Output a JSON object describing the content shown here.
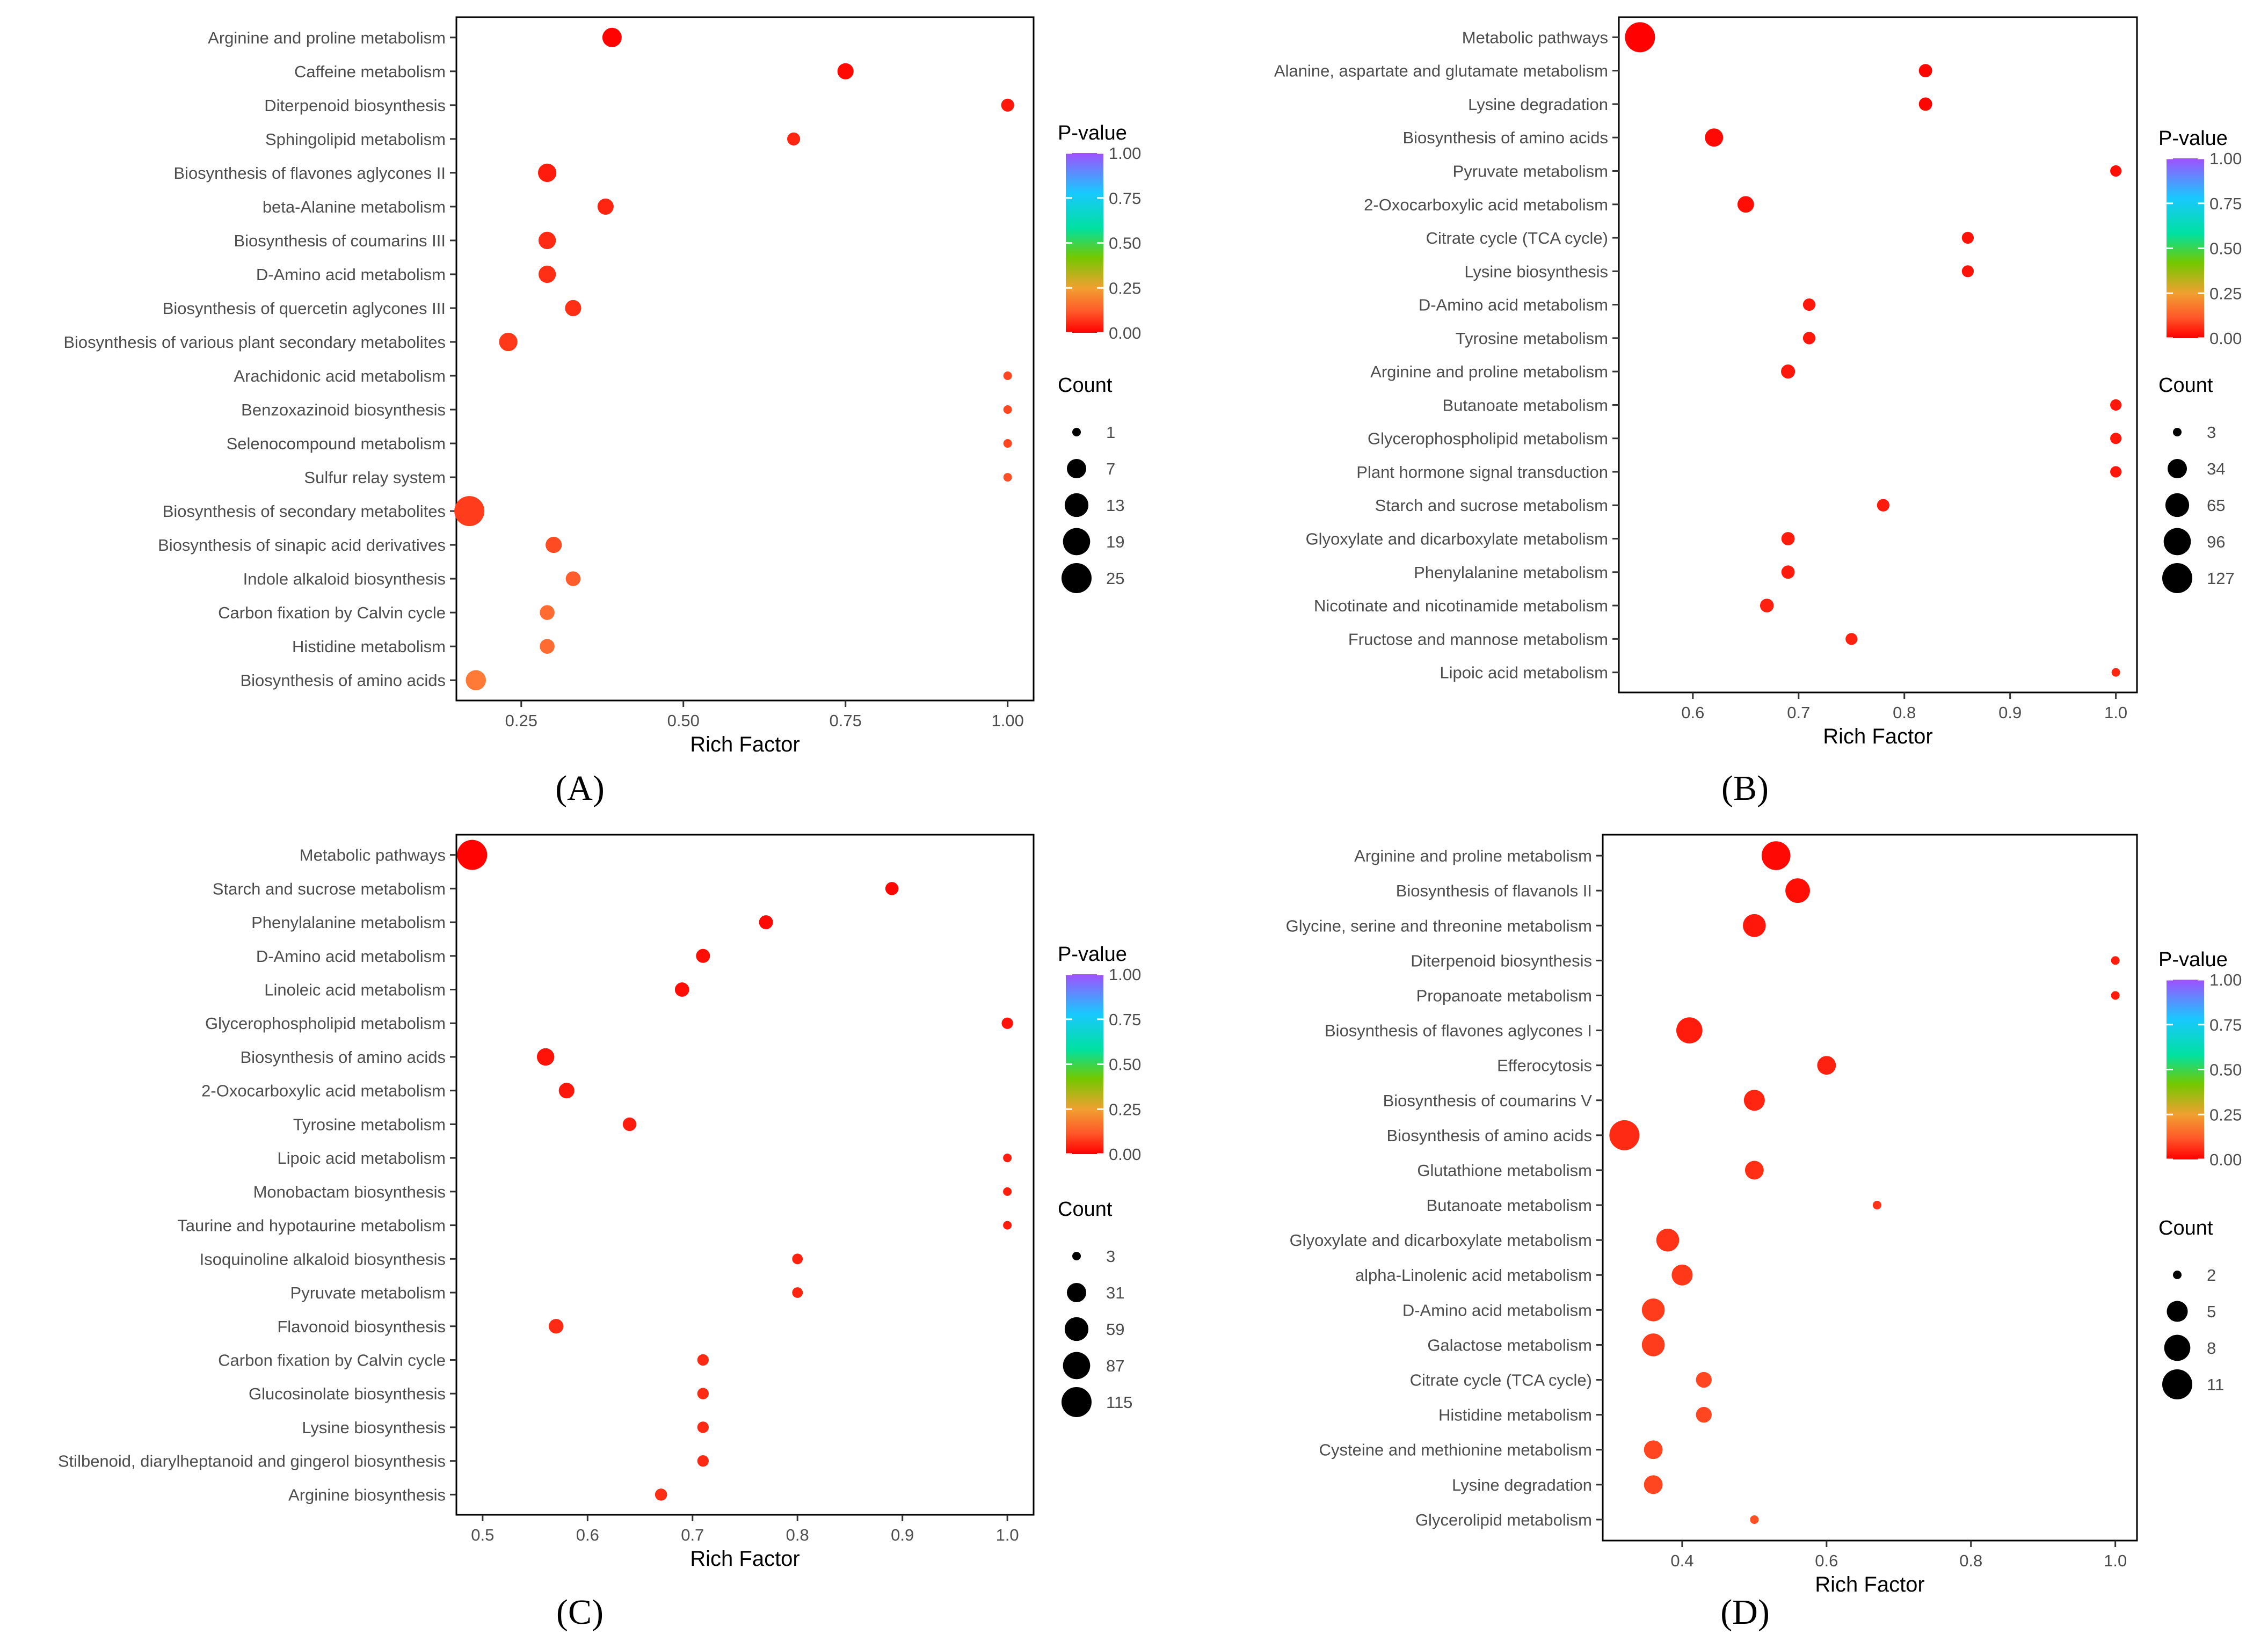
{
  "colors": {
    "low_p": "#ff0000",
    "mid_low_p": "#ff8c40",
    "quarter_p": "#73c800",
    "half_p": "#00e1a0",
    "high_p": "#8a5cff",
    "axis": "#000000",
    "tick": "#333333"
  },
  "chart_data": [
    {
      "type": "scatter",
      "panel_label": "(A)",
      "xlabel": "Rich Factor",
      "x_ticks": [
        "0.25",
        "0.50",
        "0.75",
        "1.00"
      ],
      "x_tick_values": [
        0.25,
        0.5,
        0.75,
        1.0
      ],
      "xlim": [
        0.15,
        1.04
      ],
      "color_legend_title": "P-value",
      "color_ticks": [
        "1.00",
        "0.75",
        "0.50",
        "0.25",
        "0.00"
      ],
      "size_legend_title": "Count",
      "size_ticks": [
        "1",
        "7",
        "13",
        "19",
        "25"
      ],
      "size_values": [
        1,
        7,
        13,
        19,
        25
      ],
      "categories": [
        "Arginine and proline metabolism",
        "Caffeine metabolism",
        "Diterpenoid biosynthesis",
        "Sphingolipid metabolism",
        "Biosynthesis of flavones aglycones II",
        "beta-Alanine metabolism",
        "Biosynthesis of coumarins III",
        "D-Amino acid metabolism",
        "Biosynthesis of quercetin aglycones III",
        "Biosynthesis of various plant secondary metabolites",
        "Arachidonic acid metabolism",
        "Benzoxazinoid biosynthesis",
        "Selenocompound metabolism",
        "Sulfur relay system",
        "Biosynthesis of secondary metabolites",
        "Biosynthesis of sinapic acid derivatives",
        "Indole alkaloid biosynthesis",
        "Carbon fixation by Calvin cycle",
        "Histidine metabolism",
        "Biosynthesis of amino acids"
      ],
      "x": [
        0.39,
        0.75,
        1.0,
        0.67,
        0.29,
        0.38,
        0.29,
        0.29,
        0.33,
        0.23,
        1.0,
        1.0,
        1.0,
        1.0,
        0.17,
        0.3,
        0.33,
        0.29,
        0.29,
        0.18
      ],
      "count": [
        7,
        4,
        2,
        2,
        6,
        4,
        5,
        5,
        4,
        6,
        1,
        1,
        1,
        1,
        25,
        4,
        3,
        3,
        3,
        8
      ],
      "p_value": [
        0.005,
        0.02,
        0.05,
        0.08,
        0.06,
        0.08,
        0.09,
        0.1,
        0.1,
        0.12,
        0.15,
        0.15,
        0.15,
        0.17,
        0.13,
        0.16,
        0.2,
        0.23,
        0.23,
        0.26
      ]
    },
    {
      "type": "scatter",
      "panel_label": "(B)",
      "xlabel": "Rich Factor",
      "x_ticks": [
        "0.6",
        "0.7",
        "0.8",
        "0.9",
        "1.0"
      ],
      "x_tick_values": [
        0.6,
        0.7,
        0.8,
        0.9,
        1.0
      ],
      "xlim": [
        0.53,
        1.02
      ],
      "color_legend_title": "P-value",
      "color_ticks": [
        "1.00",
        "0.75",
        "0.50",
        "0.25",
        "0.00"
      ],
      "size_legend_title": "Count",
      "size_ticks": [
        "3",
        "34",
        "65",
        "96",
        "127"
      ],
      "size_values": [
        3,
        34,
        65,
        96,
        127
      ],
      "categories": [
        "Metabolic pathways",
        "Alanine, aspartate and glutamate metabolism",
        "Lysine degradation",
        "Biosynthesis of amino acids",
        "Pyruvate metabolism",
        "2-Oxocarboxylic acid metabolism",
        "Citrate cycle (TCA cycle)",
        "Lysine biosynthesis",
        "D-Amino acid metabolism",
        "Tyrosine metabolism",
        "Arginine and proline metabolism",
        "Butanoate metabolism",
        "Glycerophospholipid metabolism",
        "Plant hormone signal transduction",
        "Starch and sucrose metabolism",
        "Glyoxylate and dicarboxylate metabolism",
        "Phenylalanine metabolism",
        "Nicotinate and nicotinamide metabolism",
        "Fructose and mannose metabolism",
        "Lipoic acid metabolism"
      ],
      "x": [
        0.55,
        0.82,
        0.82,
        0.62,
        1.0,
        0.65,
        0.86,
        0.86,
        0.71,
        0.71,
        0.69,
        1.0,
        1.0,
        1.0,
        0.78,
        0.69,
        0.69,
        0.67,
        0.75,
        1.0
      ],
      "count": [
        127,
        9,
        9,
        28,
        5,
        20,
        6,
        6,
        7,
        7,
        11,
        5,
        5,
        5,
        7,
        9,
        9,
        10,
        6,
        3
      ],
      "p_value": [
        0.002,
        0.01,
        0.01,
        0.02,
        0.03,
        0.03,
        0.04,
        0.04,
        0.05,
        0.05,
        0.05,
        0.05,
        0.05,
        0.05,
        0.06,
        0.06,
        0.06,
        0.07,
        0.07,
        0.08
      ]
    },
    {
      "type": "scatter",
      "panel_label": "(C)",
      "xlabel": "Rich Factor",
      "x_ticks": [
        "0.5",
        "0.6",
        "0.7",
        "0.8",
        "0.9",
        "1.0"
      ],
      "x_tick_values": [
        0.5,
        0.6,
        0.7,
        0.8,
        0.9,
        1.0
      ],
      "xlim": [
        0.475,
        1.025
      ],
      "color_legend_title": "P-value",
      "color_ticks": [
        "1.00",
        "0.75",
        "0.50",
        "0.25",
        "0.00"
      ],
      "size_legend_title": "Count",
      "size_ticks": [
        "3",
        "31",
        "59",
        "87",
        "115"
      ],
      "size_values": [
        3,
        31,
        59,
        87,
        115
      ],
      "categories": [
        "Metabolic pathways",
        "Starch and sucrose metabolism",
        "Phenylalanine metabolism",
        "D-Amino acid metabolism",
        "Linoleic acid metabolism",
        "Glycerophospholipid metabolism",
        "Biosynthesis of amino acids",
        "2-Oxocarboxylic acid metabolism",
        "Tyrosine metabolism",
        "Lipoic acid metabolism",
        "Monobactam biosynthesis",
        "Taurine and hypotaurine metabolism",
        "Isoquinoline alkaloid biosynthesis",
        "Pyruvate metabolism",
        "Flavonoid biosynthesis",
        "Carbon fixation by Calvin cycle",
        "Glucosinolate biosynthesis",
        "Lysine biosynthesis",
        "Stilbenoid, diarylheptanoid and gingerol biosynthesis",
        "Arginine biosynthesis"
      ],
      "x": [
        0.49,
        0.89,
        0.77,
        0.71,
        0.69,
        1.0,
        0.56,
        0.58,
        0.64,
        1.0,
        1.0,
        1.0,
        0.8,
        0.8,
        0.57,
        0.71,
        0.71,
        0.71,
        0.71,
        0.67
      ],
      "count": [
        115,
        8,
        10,
        10,
        11,
        5,
        22,
        15,
        9,
        3,
        3,
        3,
        4,
        4,
        12,
        5,
        5,
        5,
        5,
        6
      ],
      "p_value": [
        0.005,
        0.01,
        0.02,
        0.03,
        0.03,
        0.04,
        0.04,
        0.05,
        0.06,
        0.06,
        0.06,
        0.06,
        0.07,
        0.08,
        0.09,
        0.09,
        0.09,
        0.09,
        0.09,
        0.1
      ]
    },
    {
      "type": "scatter",
      "panel_label": "(D)",
      "xlabel": "Rich Factor",
      "x_ticks": [
        "0.4",
        "0.6",
        "0.8",
        "1.0"
      ],
      "x_tick_values": [
        0.4,
        0.6,
        0.8,
        1.0
      ],
      "xlim": [
        0.29,
        1.03
      ],
      "color_legend_title": "P-value",
      "color_ticks": [
        "1.00",
        "0.75",
        "0.50",
        "0.25",
        "0.00"
      ],
      "size_legend_title": "Count",
      "size_ticks": [
        "2",
        "5",
        "8",
        "11"
      ],
      "size_values": [
        2,
        5,
        8,
        11
      ],
      "categories": [
        "Arginine and proline metabolism",
        "Biosynthesis of flavanols II",
        "Glycine, serine and threonine metabolism",
        "Diterpenoid biosynthesis",
        "Propanoate metabolism",
        "Biosynthesis of flavones aglycones I",
        "Efferocytosis",
        "Biosynthesis of coumarins V",
        "Biosynthesis of amino acids",
        "Glutathione metabolism",
        "Butanoate metabolism",
        "Glyoxylate and dicarboxylate metabolism",
        "alpha-Linolenic acid metabolism",
        "D-Amino acid metabolism",
        "Galactose metabolism",
        "Citrate cycle (TCA cycle)",
        "Histidine metabolism",
        "Cysteine and methionine metabolism",
        "Lysine degradation",
        "Glycerolipid metabolism"
      ],
      "x": [
        0.53,
        0.56,
        0.5,
        1.0,
        1.0,
        0.41,
        0.6,
        0.5,
        0.32,
        0.5,
        0.67,
        0.38,
        0.4,
        0.36,
        0.36,
        0.43,
        0.43,
        0.36,
        0.36,
        0.5
      ],
      "count": [
        10,
        7,
        6,
        1,
        1,
        8,
        4,
        5,
        11,
        4,
        1,
        6,
        5,
        6,
        6,
        3,
        3,
        4,
        4,
        1
      ],
      "p_value": [
        0.02,
        0.03,
        0.05,
        0.06,
        0.06,
        0.06,
        0.07,
        0.08,
        0.09,
        0.1,
        0.11,
        0.11,
        0.12,
        0.13,
        0.13,
        0.15,
        0.15,
        0.15,
        0.15,
        0.17
      ]
    }
  ]
}
